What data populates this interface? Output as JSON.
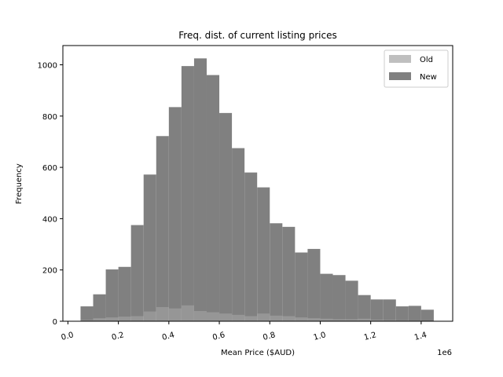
{
  "chart_data": {
    "type": "bar",
    "title": "Freq. dist. of current listing prices",
    "xlabel": "Mean Price ($AUD)",
    "ylabel": "Frequency",
    "x_scale_label": "1e6",
    "xlim": [
      -0.02,
      1.525
    ],
    "ylim": [
      0,
      1075
    ],
    "grid": false,
    "legend_position": "top-right",
    "x_ticks": [
      {
        "value": 0.0,
        "label": "0.0"
      },
      {
        "value": 0.2,
        "label": "0.2"
      },
      {
        "value": 0.4,
        "label": "0.4"
      },
      {
        "value": 0.6,
        "label": "0.6"
      },
      {
        "value": 0.8,
        "label": "0.8"
      },
      {
        "value": 1.0,
        "label": "1.0"
      },
      {
        "value": 1.2,
        "label": "1.2"
      },
      {
        "value": 1.4,
        "label": "1.4"
      }
    ],
    "y_ticks": [
      {
        "value": 0,
        "label": "0"
      },
      {
        "value": 200,
        "label": "200"
      },
      {
        "value": 400,
        "label": "400"
      },
      {
        "value": 600,
        "label": "600"
      },
      {
        "value": 800,
        "label": "800"
      },
      {
        "value": 1000,
        "label": "1000"
      }
    ],
    "bin_start": 0.05,
    "bin_width": 0.05,
    "series": [
      {
        "name": "Old",
        "color": "#bfbfbf",
        "values": [
          5,
          12,
          15,
          18,
          20,
          38,
          55,
          50,
          62,
          40,
          35,
          30,
          25,
          20,
          30,
          22,
          20,
          15,
          12,
          10,
          8,
          8,
          10,
          6,
          5,
          4,
          3,
          2
        ]
      },
      {
        "name": "New",
        "color": "#808080",
        "values": [
          58,
          105,
          202,
          212,
          375,
          572,
          722,
          835,
          995,
          1025,
          960,
          812,
          675,
          580,
          522,
          382,
          368,
          268,
          282,
          185,
          180,
          158,
          102,
          85,
          85,
          58,
          60,
          45
        ]
      }
    ]
  }
}
